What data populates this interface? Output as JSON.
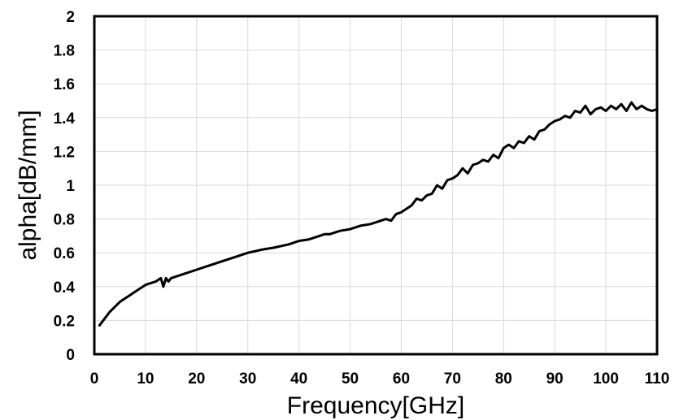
{
  "chart_data": {
    "type": "line",
    "title": "",
    "xlabel": "Frequency[GHz]",
    "ylabel": "alpha[dB/mm]",
    "xlim": [
      0,
      110
    ],
    "ylim": [
      0,
      2
    ],
    "xticks": [
      0,
      10,
      20,
      30,
      40,
      50,
      60,
      70,
      80,
      90,
      100,
      110
    ],
    "yticks": [
      0,
      0.2,
      0.4,
      0.6,
      0.8,
      1,
      1.2,
      1.4,
      1.6,
      1.8,
      2
    ],
    "grid": true,
    "legend": "none",
    "series": [
      {
        "color": "#000000",
        "x": [
          1,
          2,
          3,
          4,
          5,
          6,
          7,
          8,
          9,
          10,
          11,
          12,
          13,
          13.5,
          14,
          14.5,
          15,
          16,
          18,
          20,
          22,
          25,
          28,
          30,
          33,
          35,
          38,
          40,
          42,
          44,
          45,
          46,
          48,
          50,
          52,
          54,
          56,
          57,
          58,
          59,
          60,
          61,
          62,
          63,
          64,
          65,
          66,
          67,
          68,
          69,
          70,
          71,
          72,
          73,
          74,
          75,
          76,
          77,
          78,
          79,
          80,
          81,
          82,
          83,
          84,
          85,
          86,
          87,
          88,
          89,
          90,
          91,
          92,
          93,
          94,
          95,
          96,
          97,
          98,
          99,
          100,
          101,
          102,
          103,
          104,
          105,
          106,
          107,
          108,
          109,
          110
        ],
        "y": [
          0.17,
          0.21,
          0.25,
          0.28,
          0.31,
          0.33,
          0.35,
          0.37,
          0.39,
          0.41,
          0.42,
          0.43,
          0.45,
          0.4,
          0.45,
          0.43,
          0.45,
          0.46,
          0.48,
          0.5,
          0.52,
          0.55,
          0.58,
          0.6,
          0.62,
          0.63,
          0.65,
          0.67,
          0.68,
          0.7,
          0.71,
          0.71,
          0.73,
          0.74,
          0.76,
          0.77,
          0.79,
          0.8,
          0.79,
          0.83,
          0.84,
          0.86,
          0.88,
          0.92,
          0.91,
          0.94,
          0.95,
          1.0,
          0.98,
          1.03,
          1.04,
          1.06,
          1.1,
          1.07,
          1.12,
          1.13,
          1.15,
          1.14,
          1.18,
          1.16,
          1.22,
          1.24,
          1.22,
          1.26,
          1.25,
          1.29,
          1.27,
          1.32,
          1.33,
          1.36,
          1.38,
          1.39,
          1.41,
          1.4,
          1.44,
          1.43,
          1.47,
          1.42,
          1.45,
          1.46,
          1.44,
          1.47,
          1.45,
          1.48,
          1.44,
          1.49,
          1.45,
          1.47,
          1.45,
          1.44,
          1.45
        ]
      }
    ]
  }
}
